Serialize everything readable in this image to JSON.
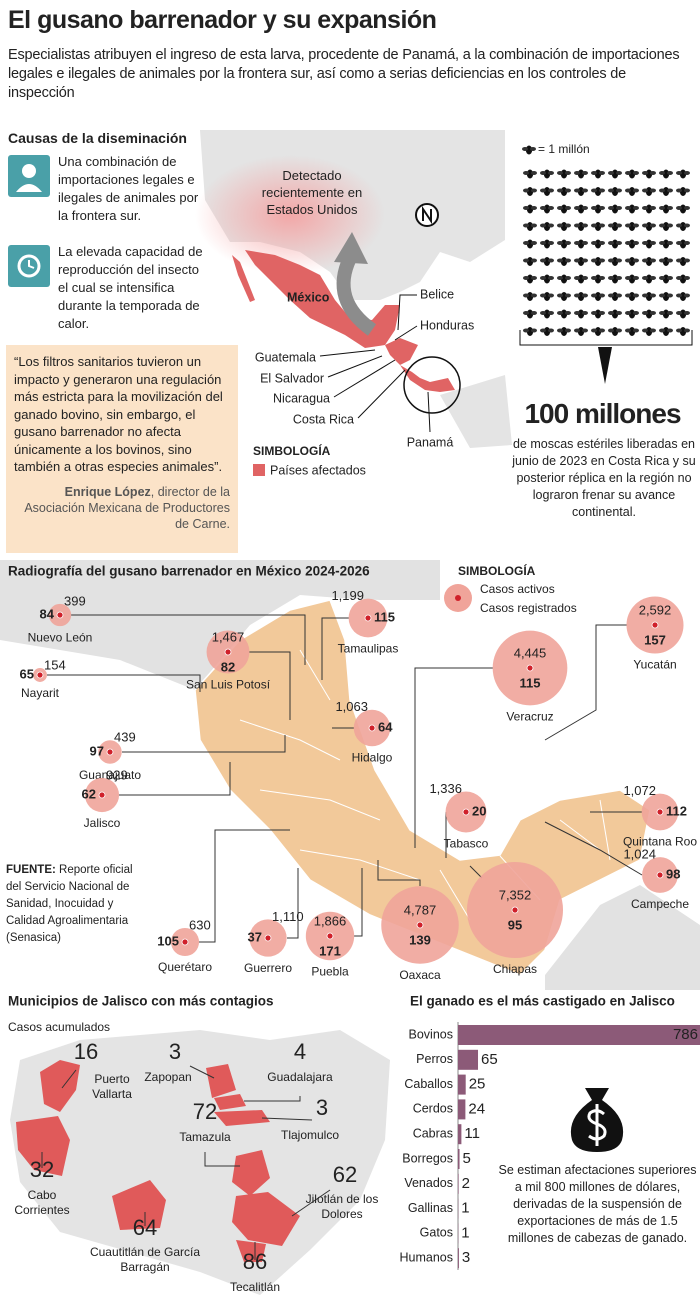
{
  "header": {
    "title": "El gusano barrenador y su expansión",
    "subtitle": "Especialistas atribuyen el ingreso de esta larva, procedente de Panamá, a la combinación de importaciones legales e ilegales de animales por la frontera sur, así como a serias deficiencias en los controles de inspección"
  },
  "causes": {
    "title": "Causas de la diseminación",
    "items": [
      "Una combinación de importaciones legales e ilegales de animales por la frontera sur.",
      "La elevada capacidad de reproducción del insecto el cual se intensifica durante la temporada de calor."
    ]
  },
  "quote": {
    "text": "“Los filtros sanitarios tuvieron un impacto y generaron una regulación más estricta para la movilización del ganado bovino, sin embargo, el gusano barrenador no afecta únicamente a los bovinos, sino también a otras especies animales”.",
    "author": "Enrique López",
    "role": ", director de la Asociación Mexicana de Productores de Carne."
  },
  "region_map": {
    "note": "Detectado recientemente en Estados Unidos",
    "countries": [
      "México",
      "Belice",
      "Honduras",
      "Guatemala",
      "El Salvador",
      "Nicaragua",
      "Costa Rica",
      "Panamá"
    ],
    "legend_title": "SIMBOLOGÍA",
    "legend_item": "Países afectados"
  },
  "flies": {
    "unit_label": "= 1 millón",
    "value": 100,
    "value_label": "100 millones",
    "text": "de moscas estériles liberadas en junio de 2023 en Costa Rica y su posterior réplica en la región no lograron frenar su avance continental."
  },
  "mexico": {
    "title": "Radiografía del gusano barrenador en México 2024-2026",
    "legend_title": "SIMBOLOGÍA",
    "legend_active": "Casos activos",
    "legend_registered": "Casos registrados",
    "states": [
      {
        "name": "Nuevo León",
        "active": 84,
        "registered": 399,
        "registered_label": "399"
      },
      {
        "name": "Nayarit",
        "active": 65,
        "registered": 154,
        "registered_label": "154"
      },
      {
        "name": "Guanajuato",
        "active": 97,
        "registered": 439,
        "registered_label": "439"
      },
      {
        "name": "Jalisco",
        "active": 62,
        "registered": 929,
        "registered_label": "929"
      },
      {
        "name": "Querétaro",
        "active": 105,
        "registered": 630,
        "registered_label": "630"
      },
      {
        "name": "Guerrero",
        "active": 37,
        "registered": 1110,
        "registered_label": "1,110"
      },
      {
        "name": "Puebla",
        "active": 171,
        "registered": 1866,
        "registered_label": "1,866"
      },
      {
        "name": "Oaxaca",
        "active": 139,
        "registered": 4787,
        "registered_label": "4,787"
      },
      {
        "name": "Chiapas",
        "active": 95,
        "registered": 7352,
        "registered_label": "7,352"
      },
      {
        "name": "San Luis Potosí",
        "active": 82,
        "registered": 1467,
        "registered_label": "1,467"
      },
      {
        "name": "Tamaulipas",
        "active": 115,
        "registered": 1199,
        "registered_label": "1,199"
      },
      {
        "name": "Hidalgo",
        "active": 64,
        "registered": 1063,
        "registered_label": "1,063"
      },
      {
        "name": "Veracruz",
        "active": 115,
        "registered": 4445,
        "registered_label": "4,445"
      },
      {
        "name": "Tabasco",
        "active": 20,
        "registered": 1336,
        "registered_label": "1,336"
      },
      {
        "name": "Yucatán",
        "active": 157,
        "registered": 2592,
        "registered_label": "2,592"
      },
      {
        "name": "Quintana Roo",
        "active": 112,
        "registered": 1072,
        "registered_label": "1,072"
      },
      {
        "name": "Campeche",
        "active": 98,
        "registered": 1024,
        "registered_label": "1,024"
      }
    ],
    "source_label": "FUENTE:",
    "source": "Reporte oficial del Servicio Nacional de Sanidad, Inocuidad y Calidad Agroalimentaria (Senasica)"
  },
  "jalisco": {
    "title": "Municipios de Jalisco con más contagios",
    "subtitle": "Casos acumulados",
    "municipalities": [
      {
        "name": "Puerto Vallarta",
        "value": 16
      },
      {
        "name": "Zapopan",
        "value": 3
      },
      {
        "name": "Guadalajara",
        "value": 4
      },
      {
        "name": "Tlajomulco",
        "value": 3
      },
      {
        "name": "Tamazula",
        "value": 72
      },
      {
        "name": "Cabo Corrientes",
        "value": 32
      },
      {
        "name": "Jilotlán de los Dolores",
        "value": 62
      },
      {
        "name": "Cuautitlán de García Barragán",
        "value": 64
      },
      {
        "name": "Tecalitlán",
        "value": 86
      }
    ]
  },
  "chart_data": {
    "type": "bar",
    "title": "El ganado es el más castigado en Jalisco",
    "categories": [
      "Bovinos",
      "Perros",
      "Caballos",
      "Cerdos",
      "Cabras",
      "Borregos",
      "Venados",
      "Gallinas",
      "Gatos",
      "Humanos"
    ],
    "values": [
      786,
      65,
      25,
      24,
      11,
      5,
      2,
      1,
      1,
      3
    ],
    "color": "#8c5a78",
    "note": "Se estiman afectaciones superiores a mil 800 millones de dólares, derivadas de la suspensión de exportaciones de más de 1.5 millones de cabezas de ganado."
  }
}
